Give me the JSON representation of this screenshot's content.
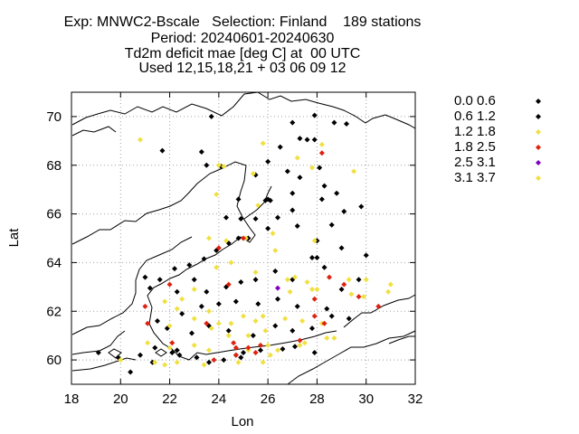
{
  "title_lines": [
    "Exp: MNWC2-Bscale   Selection: Finland    189 stations",
    "Period: 20240601-20240630",
    "Td2m deficit mae [deg C] at  00 UTC",
    "Used 12,15,18,21 + 03 06 09 12"
  ],
  "colors": {
    "black": "#000000",
    "yellow": "#f0e040",
    "red": "#e02010",
    "purple": "#8000c0",
    "grid": "#a0a0a0"
  },
  "chart_data": {
    "type": "scatter",
    "title": "Exp: MNWC2-Bscale   Selection: Finland    189 stations",
    "xlabel": "Lon",
    "ylabel": "Lat",
    "xlim": [
      18,
      32
    ],
    "ylim": [
      59,
      71
    ],
    "xticks": [
      18,
      20,
      22,
      24,
      26,
      28,
      30,
      32
    ],
    "yticks": [
      60,
      62,
      64,
      66,
      68,
      70
    ],
    "grid": true,
    "legend_position": "outside-right",
    "legend": [
      {
        "label": "0.0 0.6",
        "color": "#000000"
      },
      {
        "label": "0.6 1.2",
        "color": "#000000"
      },
      {
        "label": "1.2 1.8",
        "color": "#f0e040"
      },
      {
        "label": "1.8 2.5",
        "color": "#e02010"
      },
      {
        "label": "2.5 3.1",
        "color": "#8000c0"
      },
      {
        "label": "3.1 3.7",
        "color": "#f0e040"
      }
    ],
    "series": [
      {
        "name": "0.0 0.6",
        "points": [
          [
            23.7,
            70.0
          ],
          [
            27.0,
            69.75
          ],
          [
            27.9,
            70.05
          ],
          [
            28.7,
            69.75
          ],
          [
            29.2,
            69.7
          ],
          [
            27.3,
            69.1
          ],
          [
            27.6,
            69.05
          ],
          [
            27.9,
            69.05
          ],
          [
            26.5,
            68.75
          ],
          [
            26.0,
            68.15
          ],
          [
            21.7,
            68.6
          ],
          [
            23.3,
            68.55
          ],
          [
            23.5,
            68.0
          ],
          [
            24.1,
            67.95
          ],
          [
            25.5,
            67.6
          ],
          [
            26.8,
            67.75
          ],
          [
            27.3,
            67.5
          ],
          [
            28.1,
            67.9
          ],
          [
            28.3,
            67.15
          ],
          [
            27.0,
            66.85
          ],
          [
            24.8,
            66.6
          ],
          [
            25.9,
            66.55
          ],
          [
            26.0,
            66.6
          ],
          [
            26.1,
            66.55
          ],
          [
            27.0,
            66.15
          ],
          [
            28.8,
            66.85
          ],
          [
            29.1,
            66.1
          ],
          [
            24.3,
            65.85
          ],
          [
            24.9,
            65.8
          ],
          [
            25.5,
            65.8
          ],
          [
            26.4,
            65.85
          ],
          [
            27.2,
            65.5
          ],
          [
            28.6,
            65.55
          ],
          [
            26.0,
            65.4
          ],
          [
            25.2,
            65.0
          ],
          [
            24.8,
            65.0
          ],
          [
            24.4,
            64.8
          ],
          [
            23.9,
            64.5
          ],
          [
            23.4,
            64.15
          ],
          [
            22.8,
            63.9
          ],
          [
            22.2,
            63.75
          ],
          [
            21.6,
            63.3
          ],
          [
            21.0,
            63.4
          ],
          [
            21.2,
            62.95
          ],
          [
            22.3,
            62.8
          ],
          [
            23.0,
            63.3
          ],
          [
            23.5,
            62.8
          ],
          [
            24.3,
            63.0
          ],
          [
            24.9,
            63.2
          ],
          [
            25.5,
            63.3
          ],
          [
            26.3,
            63.65
          ],
          [
            27.0,
            63.3
          ],
          [
            27.8,
            64.2
          ],
          [
            28.0,
            64.2
          ],
          [
            28.3,
            63.8
          ],
          [
            29.0,
            64.6
          ],
          [
            30.0,
            64.3
          ],
          [
            29.7,
            63.3
          ],
          [
            29.0,
            62.9
          ],
          [
            28.4,
            62.1
          ],
          [
            27.2,
            62.2
          ],
          [
            26.4,
            62.5
          ],
          [
            25.6,
            62.3
          ],
          [
            24.7,
            62.4
          ],
          [
            24.0,
            62.3
          ],
          [
            23.3,
            62.2
          ],
          [
            22.5,
            61.9
          ],
          [
            21.5,
            61.6
          ],
          [
            21.9,
            61.3
          ],
          [
            22.9,
            61.1
          ],
          [
            23.6,
            61.4
          ],
          [
            24.4,
            61.2
          ],
          [
            25.4,
            61.0
          ],
          [
            26.3,
            61.4
          ],
          [
            27.0,
            61.2
          ],
          [
            27.8,
            61.3
          ],
          [
            28.6,
            61.8
          ],
          [
            29.3,
            61.7
          ],
          [
            22.3,
            60.4
          ],
          [
            22.1,
            60.3
          ],
          [
            22.4,
            60.2
          ],
          [
            23.1,
            60.1
          ],
          [
            23.6,
            59.9
          ],
          [
            24.2,
            60.0
          ],
          [
            24.7,
            60.2
          ],
          [
            24.9,
            60.1
          ],
          [
            25.0,
            60.3
          ],
          [
            25.7,
            60.4
          ],
          [
            26.6,
            60.45
          ],
          [
            27.1,
            60.55
          ],
          [
            27.9,
            60.3
          ],
          [
            19.1,
            60.3
          ],
          [
            19.9,
            60.1
          ],
          [
            20.4,
            59.5
          ],
          [
            21.3,
            59.9
          ],
          [
            20.8,
            60.2
          ],
          [
            21.4,
            60.5
          ],
          [
            29.8,
            66.3
          ],
          [
            28.2,
            66.6
          ],
          [
            28.0,
            64.9
          ]
        ]
      },
      {
        "name": "1.2 1.8",
        "points": [
          [
            20.8,
            69.05
          ],
          [
            25.8,
            68.9
          ],
          [
            27.2,
            68.3
          ],
          [
            27.8,
            67.9
          ],
          [
            28.2,
            68.85
          ],
          [
            24.0,
            68.0
          ],
          [
            24.2,
            67.95
          ],
          [
            25.4,
            67.65
          ],
          [
            29.5,
            67.75
          ],
          [
            23.9,
            66.8
          ],
          [
            25.6,
            66.35
          ],
          [
            26.2,
            65.2
          ],
          [
            23.6,
            65.0
          ],
          [
            25.1,
            65.0
          ],
          [
            24.3,
            64.9
          ],
          [
            26.3,
            64.5
          ],
          [
            27.9,
            64.9
          ],
          [
            24.5,
            64.0
          ],
          [
            23.9,
            63.8
          ],
          [
            25.5,
            63.6
          ],
          [
            27.1,
            63.4
          ],
          [
            27.6,
            63.2
          ],
          [
            28.0,
            62.9
          ],
          [
            27.8,
            62.9
          ],
          [
            26.8,
            63.3
          ],
          [
            26.9,
            62.8
          ],
          [
            29.3,
            63.3
          ],
          [
            30.0,
            63.3
          ],
          [
            31.0,
            63.1
          ],
          [
            30.9,
            62.8
          ],
          [
            29.9,
            62.6
          ],
          [
            29.4,
            62.7
          ],
          [
            23.0,
            62.9
          ],
          [
            22.5,
            62.5
          ],
          [
            21.8,
            62.4
          ],
          [
            22.3,
            62.1
          ],
          [
            23.6,
            62.0
          ],
          [
            25.0,
            61.8
          ],
          [
            25.8,
            61.8
          ],
          [
            26.7,
            61.7
          ],
          [
            27.4,
            61.6
          ],
          [
            28.2,
            61.5
          ],
          [
            23.0,
            61.7
          ],
          [
            24.0,
            61.5
          ],
          [
            24.4,
            61.0
          ],
          [
            25.2,
            61.0
          ],
          [
            25.9,
            61.2
          ],
          [
            26.0,
            60.6
          ],
          [
            23.0,
            60.6
          ],
          [
            23.6,
            60.4
          ],
          [
            22.0,
            60.5
          ],
          [
            21.1,
            60.7
          ],
          [
            22.3,
            59.9
          ],
          [
            23.4,
            59.8
          ],
          [
            24.8,
            59.9
          ],
          [
            25.2,
            60.4
          ],
          [
            26.1,
            60.2
          ],
          [
            26.4,
            60.4
          ],
          [
            27.3,
            60.6
          ],
          [
            28.7,
            60.9
          ],
          [
            21.4,
            59.9
          ],
          [
            20.0,
            60.0
          ],
          [
            21.8,
            59.8
          ],
          [
            28.4,
            60.9
          ],
          [
            25.8,
            59.9
          ],
          [
            27.5,
            60.7
          ],
          [
            22.0,
            61.4
          ],
          [
            23.7,
            61.3
          ],
          [
            24.5,
            61.5
          ],
          [
            25.5,
            61.6
          ]
        ]
      },
      {
        "name": "1.8 2.5",
        "points": [
          [
            28.2,
            68.5
          ],
          [
            25.0,
            65.0
          ],
          [
            24.0,
            64.6
          ],
          [
            22.0,
            63.1
          ],
          [
            24.4,
            63.1
          ],
          [
            23.5,
            61.5
          ],
          [
            21.0,
            62.2
          ],
          [
            21.1,
            61.5
          ],
          [
            24.6,
            60.7
          ],
          [
            24.7,
            60.5
          ],
          [
            25.2,
            60.5
          ],
          [
            24.7,
            60.2
          ],
          [
            25.5,
            60.3
          ],
          [
            27.3,
            60.8
          ],
          [
            27.9,
            61.8
          ],
          [
            28.3,
            61.5
          ],
          [
            28.5,
            63.4
          ],
          [
            29.1,
            63.1
          ],
          [
            29.7,
            62.6
          ],
          [
            30.5,
            62.2
          ],
          [
            27.9,
            62.5
          ],
          [
            23.8,
            60.0
          ],
          [
            22.1,
            60.7
          ],
          [
            25.7,
            60.6
          ]
        ]
      },
      {
        "name": "2.5 3.1",
        "points": [
          [
            26.4,
            62.95
          ]
        ]
      }
    ]
  }
}
